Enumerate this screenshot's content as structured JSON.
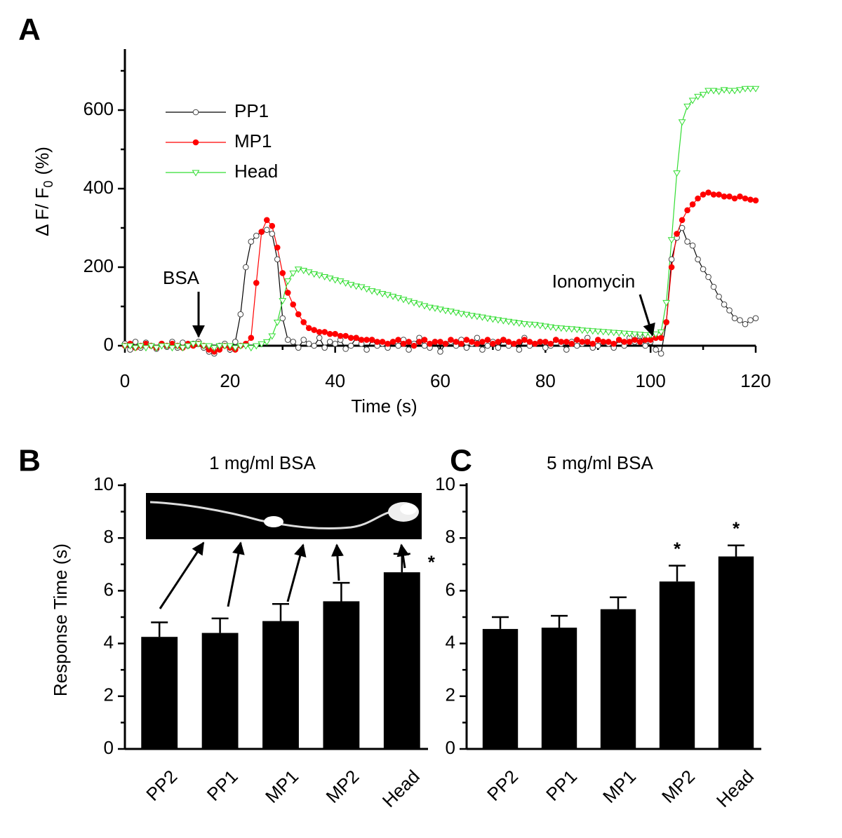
{
  "chart_data": [
    {
      "type": "line",
      "panel": "A",
      "xlabel": "Time (s)",
      "ylabel": {
        "main": "Δ F/ F",
        "subscript": "0",
        "suffix": "(%)"
      },
      "annotations": [
        "BSA",
        "Ionomycin"
      ],
      "legend": "upper left",
      "xlim": [
        0,
        120
      ],
      "xticks": [
        0,
        20,
        40,
        60,
        80,
        100,
        120
      ],
      "xminorticks": [
        10,
        30,
        50,
        70,
        90,
        110
      ],
      "ylim": [
        0,
        750
      ],
      "yticks": [
        0,
        200,
        400,
        600
      ],
      "yminorticks": [
        100,
        300,
        500,
        700
      ],
      "x": [
        0,
        1,
        2,
        3,
        4,
        5,
        6,
        7,
        8,
        9,
        10,
        11,
        12,
        13,
        14,
        15,
        16,
        17,
        18,
        19,
        20,
        21,
        22,
        23,
        24,
        25,
        26,
        27,
        28,
        29,
        30,
        31,
        32,
        33,
        34,
        35,
        36,
        37,
        38,
        39,
        40,
        41,
        42,
        43,
        44,
        45,
        46,
        47,
        48,
        49,
        50,
        51,
        52,
        53,
        54,
        55,
        56,
        57,
        58,
        59,
        60,
        61,
        62,
        63,
        64,
        65,
        66,
        67,
        68,
        69,
        70,
        71,
        72,
        73,
        74,
        75,
        76,
        77,
        78,
        79,
        80,
        81,
        82,
        83,
        84,
        85,
        86,
        87,
        88,
        89,
        90,
        91,
        92,
        93,
        94,
        95,
        96,
        97,
        98,
        99,
        100,
        101,
        102,
        103,
        104,
        105,
        106,
        107,
        108,
        109,
        110,
        111,
        112,
        113,
        114,
        115,
        116,
        117,
        118,
        119,
        120
      ],
      "series": [
        {
          "name": "PP1",
          "color": "#000000",
          "marker": "circle-open",
          "values": [
            5,
            -10,
            10,
            -5,
            8,
            0,
            -8,
            5,
            -3,
            10,
            -5,
            8,
            0,
            5,
            10,
            -5,
            -15,
            -20,
            0,
            5,
            -10,
            10,
            80,
            200,
            265,
            280,
            290,
            295,
            285,
            220,
            70,
            15,
            10,
            -5,
            15,
            5,
            0,
            20,
            -5,
            10,
            5,
            15,
            -8,
            0,
            20,
            5,
            -10,
            15,
            0,
            5,
            -5,
            10,
            0,
            15,
            -10,
            5,
            20,
            0,
            -5,
            10,
            -15,
            5,
            10,
            0,
            15,
            -5,
            5,
            20,
            -10,
            0,
            10,
            -5,
            15,
            0,
            5,
            -10,
            20,
            0,
            5,
            10,
            -5,
            0,
            15,
            5,
            -10,
            10,
            0,
            5,
            20,
            -5,
            0,
            10,
            5,
            -5,
            15,
            0,
            20,
            10,
            25,
            0,
            10,
            -10,
            -20,
            60,
            220,
            275,
            300,
            265,
            255,
            220,
            195,
            175,
            150,
            125,
            105,
            90,
            70,
            65,
            55,
            65,
            70
          ]
        },
        {
          "name": "MP1",
          "color": "#ff0000",
          "marker": "circle",
          "values": [
            0,
            5,
            -5,
            0,
            5,
            0,
            -5,
            5,
            0,
            5,
            0,
            -5,
            5,
            0,
            5,
            0,
            -10,
            -15,
            -10,
            0,
            -5,
            -10,
            0,
            5,
            20,
            160,
            290,
            320,
            305,
            250,
            185,
            135,
            105,
            80,
            60,
            45,
            40,
            35,
            35,
            30,
            30,
            25,
            25,
            20,
            20,
            15,
            15,
            15,
            10,
            10,
            5,
            10,
            15,
            5,
            10,
            0,
            10,
            15,
            5,
            10,
            10,
            5,
            15,
            10,
            5,
            15,
            10,
            5,
            10,
            15,
            5,
            10,
            15,
            10,
            5,
            10,
            15,
            10,
            5,
            10,
            10,
            5,
            15,
            10,
            10,
            5,
            15,
            10,
            10,
            5,
            15,
            10,
            10,
            5,
            15,
            10,
            10,
            15,
            10,
            15,
            15,
            20,
            20,
            60,
            200,
            285,
            320,
            345,
            360,
            375,
            385,
            390,
            385,
            385,
            380,
            380,
            375,
            380,
            375,
            372,
            370
          ]
        },
        {
          "name": "Head",
          "color": "#33dd33",
          "marker": "triangle-down-open",
          "values": [
            0,
            0,
            -5,
            0,
            -5,
            0,
            -5,
            0,
            0,
            -5,
            0,
            -5,
            0,
            5,
            5,
            0,
            0,
            -5,
            0,
            0,
            0,
            -5,
            0,
            0,
            -5,
            0,
            5,
            10,
            25,
            60,
            115,
            165,
            185,
            195,
            192,
            188,
            183,
            180,
            176,
            172,
            168,
            165,
            160,
            156,
            152,
            150,
            145,
            140,
            137,
            133,
            130,
            126,
            122,
            118,
            114,
            110,
            106,
            102,
            98,
            96,
            93,
            90,
            88,
            85,
            82,
            80,
            77,
            75,
            73,
            70,
            68,
            66,
            64,
            62,
            60,
            58,
            56,
            55,
            54,
            52,
            50,
            48,
            46,
            45,
            44,
            43,
            42,
            40,
            39,
            38,
            37,
            36,
            35,
            34,
            33,
            32,
            31,
            30,
            29,
            28,
            28,
            30,
            35,
            110,
            270,
            440,
            570,
            610,
            625,
            635,
            640,
            650,
            650,
            648,
            652,
            650,
            650,
            652,
            655,
            655,
            655
          ]
        }
      ]
    },
    {
      "type": "bar",
      "panel": "B",
      "title": "1 mg/ml BSA",
      "ylabel": "Response Time (s)",
      "color": "#000000",
      "categories": [
        "PP2",
        "PP1",
        "MP1",
        "MP2",
        "Head"
      ],
      "values": [
        4.25,
        4.4,
        4.85,
        5.6,
        6.7
      ],
      "errors": [
        0.55,
        0.55,
        0.65,
        0.7,
        0.7
      ],
      "significance": [
        null,
        null,
        null,
        null,
        "*"
      ],
      "ylim": [
        0,
        10
      ],
      "yticks": [
        0,
        2,
        4,
        6,
        8,
        10
      ],
      "yminorticks": [
        1,
        3,
        5,
        7,
        9
      ]
    },
    {
      "type": "bar",
      "panel": "C",
      "title": "5 mg/ml BSA",
      "color": "#000000",
      "categories": [
        "PP2",
        "PP1",
        "MP1",
        "MP2",
        "Head"
      ],
      "values": [
        4.55,
        4.6,
        5.3,
        6.35,
        7.3
      ],
      "errors": [
        0.45,
        0.45,
        0.45,
        0.6,
        0.42
      ],
      "significance": [
        null,
        null,
        null,
        "*",
        "*"
      ],
      "ylim": [
        0,
        10
      ],
      "yticks": [
        0,
        2,
        4,
        6,
        8,
        10
      ],
      "yminorticks": [
        1,
        3,
        5,
        7,
        9
      ]
    }
  ]
}
